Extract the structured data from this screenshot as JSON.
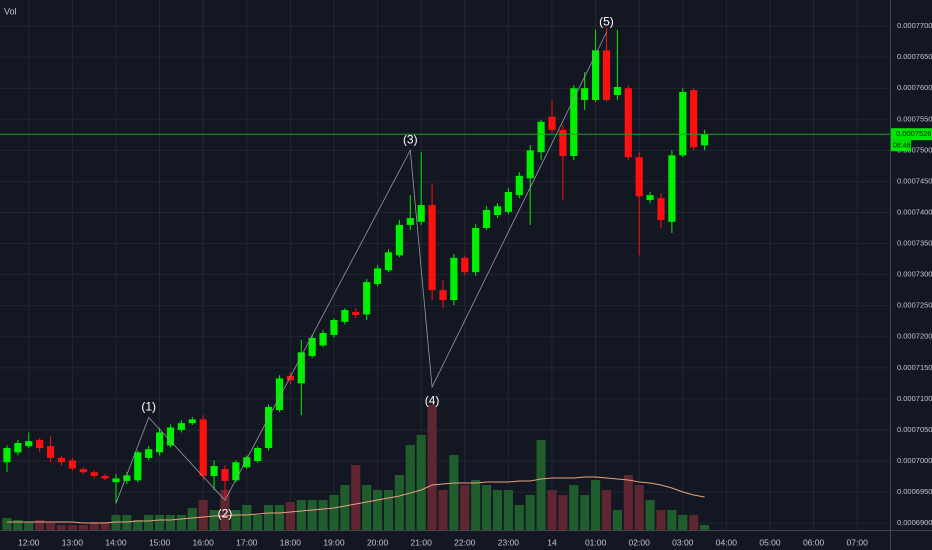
{
  "chart_data": {
    "type": "candlestick",
    "volume_title": "Vol",
    "up_color": "#00f000",
    "down_color": "#ff1010",
    "volume_up_color": "#1f5e2c",
    "volume_down_color": "#5e2631",
    "volume_ma_color": "#e8a07e",
    "wave_color": "#9598a1",
    "grid": true,
    "xlim": [
      -0.64,
      81.01
    ],
    "xticks": [
      {
        "value": 2,
        "label": "12:00"
      },
      {
        "value": 6,
        "label": "13:00"
      },
      {
        "value": 10,
        "label": "14:00"
      },
      {
        "value": 14,
        "label": "15:00"
      },
      {
        "value": 18,
        "label": "16:00"
      },
      {
        "value": 22,
        "label": "17:00"
      },
      {
        "value": 26,
        "label": "18:00"
      },
      {
        "value": 30,
        "label": "19:00"
      },
      {
        "value": 34,
        "label": "20:00"
      },
      {
        "value": 38,
        "label": "21:00"
      },
      {
        "value": 42,
        "label": "22:00"
      },
      {
        "value": 46,
        "label": "23:00"
      },
      {
        "value": 50,
        "label": "14"
      },
      {
        "value": 54,
        "label": "01:00"
      },
      {
        "value": 58,
        "label": "02:00"
      },
      {
        "value": 62,
        "label": "03:00"
      },
      {
        "value": 66,
        "label": "04:00"
      },
      {
        "value": 70,
        "label": "05:00"
      },
      {
        "value": 74,
        "label": "06:00"
      },
      {
        "value": 78,
        "label": "07:00"
      }
    ],
    "ylim": [
      0.0006889,
      0.0007742
    ],
    "yticks": [
      {
        "value": 0.00069,
        "label": "0.0006900"
      },
      {
        "value": 0.000695,
        "label": "0.0006950"
      },
      {
        "value": 0.0007,
        "label": "0.0007000"
      },
      {
        "value": 0.000705,
        "label": "0.0007050"
      },
      {
        "value": 0.00071,
        "label": "0.0007100"
      },
      {
        "value": 0.000715,
        "label": "0.0007150"
      },
      {
        "value": 0.00072,
        "label": "0.0007200"
      },
      {
        "value": 0.000725,
        "label": "0.0007250"
      },
      {
        "value": 0.00073,
        "label": "0.0007300"
      },
      {
        "value": 0.000735,
        "label": "0.0007350"
      },
      {
        "value": 0.00074,
        "label": "0.0007400"
      },
      {
        "value": 0.000745,
        "label": "0.0007450"
      },
      {
        "value": 0.00075,
        "label": "0.0007500"
      },
      {
        "value": 0.000755,
        "label": "0.0007550"
      },
      {
        "value": 0.00076,
        "label": "0.0007600"
      },
      {
        "value": 0.000765,
        "label": "0.0007650"
      },
      {
        "value": 0.00077,
        "label": "0.0007700"
      }
    ],
    "current_price": {
      "value": 0.0007526,
      "label": "0.0007526"
    },
    "countdown": "08:48",
    "open": [
      0.0006998,
      0.0007014,
      0.0007024,
      0.0007034,
      0.0007024,
      0.0007005,
      0.0007001,
      0.0006987,
      0.0006982,
      0.0006976,
      0.0006966,
      0.0006968,
      0.0006969,
      0.0007005,
      0.0007014,
      0.0007025,
      0.000705,
      0.0007061,
      0.0007067,
      0.0006976,
      0.0006987,
      0.0006969,
      0.000699,
      0.0007,
      0.0007021,
      0.0007082,
      0.0007137,
      0.0007125,
      0.0007169,
      0.0007186,
      0.0007203,
      0.0007224,
      0.000724,
      0.0007236,
      0.0007285,
      0.0007307,
      0.0007331,
      0.000738,
      0.0007385,
      0.0007412,
      0.0007275,
      0.0007259,
      0.0007327,
      0.0007304,
      0.0007375,
      0.0007396,
      0.0007401,
      0.0007428,
      0.0007455,
      0.0007497,
      0.0007554,
      0.0007533,
      0.0007491,
      0.0007581,
      0.0007581,
      0.0007661,
      0.0007589,
      0.00076,
      0.0007489,
      0.000742,
      0.0007423,
      0.0007385,
      0.0007492,
      0.0007597,
      0.0007508
    ],
    "high": [
      0.0007025,
      0.0007034,
      0.0007046,
      0.0007037,
      0.000704,
      0.0007008,
      0.0007005,
      0.000699,
      0.0006985,
      0.0006979,
      0.0006979,
      0.0006982,
      0.0007017,
      0.0007024,
      0.0007053,
      0.0007059,
      0.0007066,
      0.0007071,
      0.0007074,
      0.0007001,
      0.0006993,
      0.0007001,
      0.0007009,
      0.0007024,
      0.0007091,
      0.0007138,
      0.0007143,
      0.0007195,
      0.0007203,
      0.0007211,
      0.000723,
      0.0007246,
      0.0007246,
      0.0007293,
      0.0007315,
      0.0007341,
      0.0007388,
      0.0007428,
      0.0007497,
      0.0007447,
      0.0007291,
      0.0007333,
      0.0007331,
      0.0007381,
      0.000741,
      0.0007415,
      0.0007439,
      0.0007465,
      0.0007508,
      0.0007549,
      0.0007581,
      0.0007541,
      0.0007605,
      0.0007626,
      0.0007694,
      0.0007697,
      0.0007694,
      0.0007605,
      0.0007497,
      0.0007433,
      0.0007431,
      0.00075,
      0.00076,
      0.00076,
      0.0007533
    ],
    "low": [
      0.0006982,
      0.0007009,
      0.0007021,
      0.0007014,
      0.0006998,
      0.0006993,
      0.0006985,
      0.0006979,
      0.0006972,
      0.0006969,
      0.0006932,
      0.0006963,
      0.0006966,
      0.0007001,
      0.0007009,
      0.0007022,
      0.0007046,
      0.0007058,
      0.0006969,
      0.0006953,
      0.000694,
      0.0006966,
      0.0006987,
      0.0006997,
      0.0007017,
      0.0007079,
      0.0007124,
      0.0007074,
      0.0007166,
      0.0007183,
      0.0007199,
      0.000722,
      0.000723,
      0.0007227,
      0.0007281,
      0.0007304,
      0.0007328,
      0.0007372,
      0.000738,
      0.0007259,
      0.0007246,
      0.0007251,
      0.0007299,
      0.0007298,
      0.0007372,
      0.0007391,
      0.0007397,
      0.0007423,
      0.000738,
      0.0007484,
      0.0007528,
      0.000742,
      0.0007484,
      0.0007565,
      0.0007578,
      0.0007578,
      0.0007581,
      0.0007484,
      0.0007331,
      0.0007415,
      0.0007375,
      0.0007367,
      0.0007489,
      0.00075,
      0.00075
    ],
    "close": [
      0.0007021,
      0.0007029,
      0.0007032,
      0.0007021,
      0.0007005,
      0.0006998,
      0.0006988,
      0.0006982,
      0.0006976,
      0.0006972,
      0.0006972,
      0.0006977,
      0.0007014,
      0.0007019,
      0.0007046,
      0.0007054,
      0.0007061,
      0.0007067,
      0.0006976,
      0.0006992,
      0.0006968,
      0.0006998,
      0.0007006,
      0.0007021,
      0.0007087,
      0.0007133,
      0.000713,
      0.0007175,
      0.0007198,
      0.0007206,
      0.0007227,
      0.0007243,
      0.0007235,
      0.0007288,
      0.000731,
      0.0007336,
      0.000738,
      0.0007391,
      0.0007412,
      0.0007275,
      0.0007259,
      0.0007327,
      0.0007304,
      0.0007375,
      0.0007404,
      0.000741,
      0.0007433,
      0.0007459,
      0.00075,
      0.0007546,
      0.0007533,
      0.0007491,
      0.00076,
      0.00076,
      0.0007661,
      0.0007581,
      0.0007602,
      0.0007489,
      0.0007426,
      0.0007428,
      0.0007388,
      0.0007492,
      0.0007594,
      0.0007505,
      0.0007526
    ],
    "volume": [
      12,
      10,
      8,
      10,
      8,
      5,
      5,
      5,
      8,
      8,
      15,
      15,
      10,
      15,
      15,
      15,
      15,
      22,
      30,
      20,
      40,
      20,
      25,
      15,
      25,
      25,
      28,
      30,
      30,
      30,
      35,
      45,
      65,
      45,
      40,
      40,
      55,
      85,
      95,
      125,
      40,
      75,
      45,
      50,
      45,
      40,
      40,
      25,
      35,
      90,
      40,
      35,
      45,
      35,
      50,
      40,
      20,
      55,
      45,
      30,
      20,
      20,
      15,
      15,
      5
    ],
    "volume_ma": [
      8,
      8,
      8,
      8,
      8,
      8,
      8,
      7,
      7,
      7,
      8,
      8,
      9,
      9,
      10,
      10,
      11,
      12,
      13,
      14,
      14,
      15,
      15,
      16,
      17,
      17,
      18,
      19,
      20,
      21,
      22,
      24,
      26,
      28,
      30,
      32,
      34,
      37,
      40,
      45,
      46,
      47,
      47,
      47,
      48,
      48,
      48,
      49,
      49,
      51,
      52,
      52,
      52,
      53,
      53,
      52,
      51,
      50,
      48,
      47,
      45,
      42,
      38,
      35,
      33
    ],
    "waves": [
      {
        "label": null,
        "x": 10,
        "y": 0.0006932
      },
      {
        "label": "(1)",
        "x": 13,
        "y": 0.000707
      },
      {
        "label": "(2)",
        "x": 20,
        "y": 0.0006937
      },
      {
        "label": "(3)",
        "x": 37,
        "y": 0.00075
      },
      {
        "label": "(4)",
        "x": 39,
        "y": 0.0007119
      },
      {
        "label": "(5)",
        "x": 55,
        "y": 0.000769
      }
    ]
  }
}
